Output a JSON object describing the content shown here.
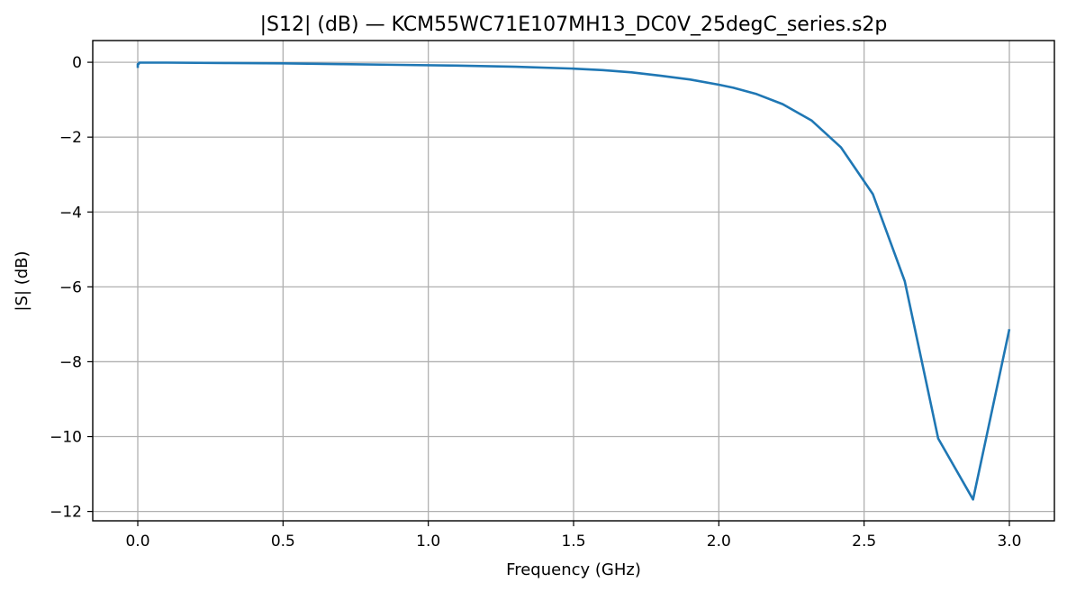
{
  "chart_data": {
    "type": "line",
    "title": "|S12| (dB) — KCM55WC71E107MH13_DC0V_25degC_series.s2p",
    "xlabel": "Frequency (GHz)",
    "ylabel": "|S| (dB)",
    "xlim": [
      -0.155,
      3.155
    ],
    "ylim": [
      -12.25,
      0.58
    ],
    "xticks": [
      0.0,
      0.5,
      1.0,
      1.5,
      2.0,
      2.5,
      3.0
    ],
    "xtick_labels": [
      "0.0",
      "0.5",
      "1.0",
      "1.5",
      "2.0",
      "2.5",
      "3.0"
    ],
    "yticks": [
      0,
      -2,
      -4,
      -6,
      -8,
      -10,
      -12
    ],
    "ytick_labels": [
      "0",
      "−2",
      "−4",
      "−6",
      "−8",
      "−10",
      "−12"
    ],
    "grid": true,
    "series": [
      {
        "color": "#1f77b4",
        "x": [
          0.0,
          0.0,
          0.003,
          0.005,
          0.1,
          0.3,
          0.5,
          0.7,
          0.9,
          1.1,
          1.3,
          1.5,
          1.6,
          1.7,
          1.8,
          1.9,
          2.0,
          2.05,
          2.13,
          2.22,
          2.32,
          2.42,
          2.53,
          2.64,
          2.755,
          2.875,
          3.0
        ],
        "y": [
          -0.15,
          -0.05,
          -0.05,
          -0.01,
          -0.01,
          -0.02,
          -0.03,
          -0.05,
          -0.07,
          -0.09,
          -0.12,
          -0.17,
          -0.21,
          -0.27,
          -0.36,
          -0.46,
          -0.6,
          -0.68,
          -0.85,
          -1.12,
          -1.56,
          -2.27,
          -3.52,
          -5.85,
          -10.05,
          -11.68,
          -7.13
        ]
      }
    ]
  }
}
